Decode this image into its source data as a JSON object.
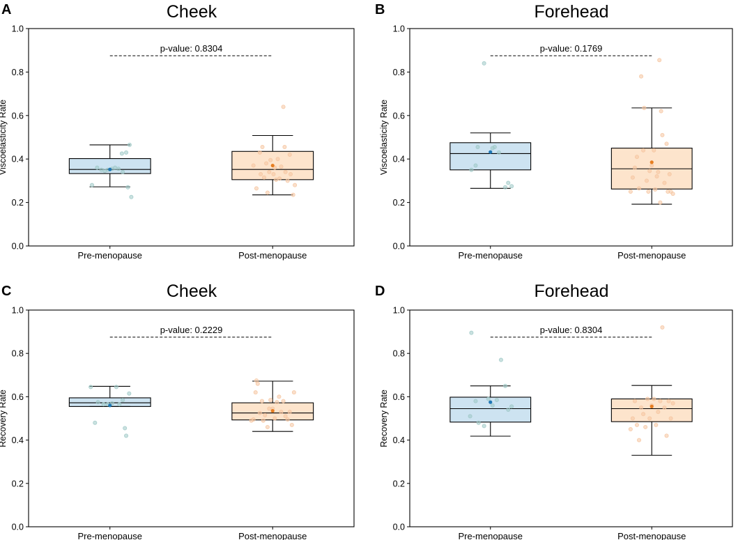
{
  "colors": {
    "pre_fill": "#cde3f1",
    "pre_mean": "#1f77b4",
    "pre_point": "#9fc9c6",
    "post_fill": "#fde4cc",
    "post_mean": "#e67e22",
    "post_point": "#f5c5a0",
    "axis": "#000000"
  },
  "chart_data": [
    {
      "type": "box",
      "panel": "A",
      "title": "Cheek",
      "ylabel": "Viscoelasticity Rate",
      "ylim": [
        0,
        1
      ],
      "yticks": [
        "0.0",
        "0.2",
        "0.4",
        "0.6",
        "0.8",
        "1.0"
      ],
      "p_value": "p-value: 0.8304",
      "groups": [
        {
          "name": "Pre-menopause",
          "whisker_low": 0.272,
          "q1": 0.333,
          "median": 0.352,
          "q3": 0.402,
          "whisker_high": 0.465,
          "mean": 0.352,
          "points": [
            [
              -0.42,
              0.28
            ],
            [
              -0.3,
              0.36
            ],
            [
              -0.2,
              0.35
            ],
            [
              -0.12,
              0.345
            ],
            [
              -0.05,
              0.35
            ],
            [
              0.05,
              0.355
            ],
            [
              0.12,
              0.36
            ],
            [
              0.2,
              0.355
            ],
            [
              0.28,
              0.425
            ],
            [
              0.3,
              0.34
            ],
            [
              0.38,
              0.43
            ],
            [
              0.42,
              0.27
            ],
            [
              0.46,
              0.465
            ],
            [
              0.5,
              0.225
            ]
          ]
        },
        {
          "name": "Post-menopause",
          "whisker_low": 0.235,
          "q1": 0.305,
          "median": 0.352,
          "q3": 0.435,
          "whisker_high": 0.508,
          "mean": 0.37,
          "points": [
            [
              -0.45,
              0.37
            ],
            [
              -0.38,
              0.265
            ],
            [
              -0.3,
              0.43
            ],
            [
              -0.28,
              0.33
            ],
            [
              -0.24,
              0.455
            ],
            [
              -0.2,
              0.315
            ],
            [
              -0.15,
              0.38
            ],
            [
              -0.12,
              0.245
            ],
            [
              -0.08,
              0.34
            ],
            [
              -0.05,
              0.395
            ],
            [
              0.02,
              0.33
            ],
            [
              0.05,
              0.36
            ],
            [
              0.08,
              0.305
            ],
            [
              0.12,
              0.4
            ],
            [
              0.16,
              0.31
            ],
            [
              0.2,
              0.365
            ],
            [
              0.25,
              0.64
            ],
            [
              0.28,
              0.455
            ],
            [
              0.3,
              0.34
            ],
            [
              0.35,
              0.3
            ],
            [
              0.4,
              0.42
            ],
            [
              0.42,
              0.33
            ],
            [
              0.48,
              0.235
            ],
            [
              0.52,
              0.28
            ]
          ]
        }
      ]
    },
    {
      "type": "box",
      "panel": "B",
      "title": "Forehead",
      "ylabel": "Viscoelasticity Rate",
      "ylim": [
        0,
        1
      ],
      "yticks": [
        "0.0",
        "0.2",
        "0.4",
        "0.6",
        "0.8",
        "1.0"
      ],
      "p_value": "p-value: 0.1769",
      "groups": [
        {
          "name": "Pre-menopause",
          "whisker_low": 0.265,
          "q1": 0.35,
          "median": 0.425,
          "q3": 0.475,
          "whisker_high": 0.52,
          "mean": 0.432,
          "points": [
            [
              -0.45,
              0.35
            ],
            [
              -0.35,
              0.37
            ],
            [
              -0.3,
              0.455
            ],
            [
              -0.15,
              0.84
            ],
            [
              0.05,
              0.45
            ],
            [
              0.1,
              0.455
            ],
            [
              0.2,
              0.43
            ],
            [
              0.35,
              0.27
            ],
            [
              0.42,
              0.29
            ],
            [
              0.5,
              0.275
            ]
          ]
        },
        {
          "name": "Post-menopause",
          "whisker_low": 0.192,
          "q1": 0.262,
          "median": 0.355,
          "q3": 0.45,
          "whisker_high": 0.635,
          "mean": 0.385,
          "points": [
            [
              -0.5,
              0.25
            ],
            [
              -0.45,
              0.315
            ],
            [
              -0.4,
              0.36
            ],
            [
              -0.35,
              0.41
            ],
            [
              -0.3,
              0.265
            ],
            [
              -0.25,
              0.78
            ],
            [
              -0.2,
              0.44
            ],
            [
              -0.18,
              0.635
            ],
            [
              -0.12,
              0.3
            ],
            [
              -0.08,
              0.25
            ],
            [
              -0.05,
              0.345
            ],
            [
              0.0,
              0.37
            ],
            [
              0.05,
              0.44
            ],
            [
              0.08,
              0.26
            ],
            [
              0.12,
              0.32
            ],
            [
              0.15,
              0.34
            ],
            [
              0.18,
              0.855
            ],
            [
              0.2,
              0.2
            ],
            [
              0.22,
              0.62
            ],
            [
              0.25,
              0.51
            ],
            [
              0.3,
              0.29
            ],
            [
              0.35,
              0.47
            ],
            [
              0.38,
              0.25
            ],
            [
              0.42,
              0.33
            ],
            [
              0.45,
              0.25
            ],
            [
              0.5,
              0.24
            ]
          ]
        }
      ]
    },
    {
      "type": "box",
      "panel": "C",
      "title": "Cheek",
      "ylabel": "Recovery Rate",
      "ylim": [
        0,
        1
      ],
      "yticks": [
        "0.0",
        "0.2",
        "0.4",
        "0.6",
        "0.8",
        "1.0"
      ],
      "p_value": "p-value: 0.2229",
      "groups": [
        {
          "name": "Pre-menopause",
          "whisker_low": 0.555,
          "q1": 0.555,
          "median": 0.572,
          "q3": 0.595,
          "whisker_high": 0.648,
          "mean": 0.56,
          "points": [
            [
              -0.45,
              0.645
            ],
            [
              -0.35,
              0.48
            ],
            [
              -0.28,
              0.575
            ],
            [
              -0.15,
              0.565
            ],
            [
              -0.05,
              0.565
            ],
            [
              0.05,
              0.57
            ],
            [
              0.15,
              0.645
            ],
            [
              0.22,
              0.565
            ],
            [
              0.3,
              0.585
            ],
            [
              0.35,
              0.455
            ],
            [
              0.38,
              0.42
            ],
            [
              0.45,
              0.615
            ]
          ]
        },
        {
          "name": "Post-menopause",
          "whisker_low": 0.44,
          "q1": 0.493,
          "median": 0.525,
          "q3": 0.572,
          "whisker_high": 0.672,
          "mean": 0.535,
          "points": [
            [
              -0.5,
              0.49
            ],
            [
              -0.45,
              0.495
            ],
            [
              -0.4,
              0.62
            ],
            [
              -0.38,
              0.675
            ],
            [
              -0.35,
              0.66
            ],
            [
              -0.3,
              0.525
            ],
            [
              -0.25,
              0.58
            ],
            [
              -0.22,
              0.49
            ],
            [
              -0.18,
              0.515
            ],
            [
              -0.12,
              0.46
            ],
            [
              -0.08,
              0.545
            ],
            [
              -0.05,
              0.585
            ],
            [
              0.0,
              0.545
            ],
            [
              0.05,
              0.5
            ],
            [
              0.1,
              0.575
            ],
            [
              0.15,
              0.6
            ],
            [
              0.2,
              0.53
            ],
            [
              0.25,
              0.58
            ],
            [
              0.3,
              0.51
            ],
            [
              0.35,
              0.495
            ],
            [
              0.4,
              0.53
            ],
            [
              0.45,
              0.47
            ],
            [
              0.5,
              0.62
            ]
          ]
        }
      ]
    },
    {
      "type": "box",
      "panel": "D",
      "title": "Forehead",
      "ylabel": "Recovery Rate",
      "ylim": [
        0,
        1
      ],
      "yticks": [
        "0.0",
        "0.2",
        "0.4",
        "0.6",
        "0.8",
        "1.0"
      ],
      "p_value": "p-value: 0.8304",
      "groups": [
        {
          "name": "Pre-menopause",
          "whisker_low": 0.418,
          "q1": 0.483,
          "median": 0.545,
          "q3": 0.598,
          "whisker_high": 0.65,
          "mean": 0.575,
          "points": [
            [
              -0.48,
              0.51
            ],
            [
              -0.45,
              0.895
            ],
            [
              -0.35,
              0.58
            ],
            [
              -0.28,
              0.48
            ],
            [
              -0.15,
              0.465
            ],
            [
              -0.05,
              0.59
            ],
            [
              0.05,
              0.56
            ],
            [
              0.15,
              0.585
            ],
            [
              0.25,
              0.77
            ],
            [
              0.35,
              0.65
            ],
            [
              0.42,
              0.54
            ],
            [
              0.5,
              0.555
            ]
          ]
        },
        {
          "name": "Post-menopause",
          "whisker_low": 0.33,
          "q1": 0.485,
          "median": 0.545,
          "q3": 0.59,
          "whisker_high": 0.652,
          "mean": 0.555,
          "points": [
            [
              -0.5,
              0.45
            ],
            [
              -0.45,
              0.5
            ],
            [
              -0.4,
              0.58
            ],
            [
              -0.35,
              0.47
            ],
            [
              -0.3,
              0.4
            ],
            [
              -0.25,
              0.55
            ],
            [
              -0.2,
              0.52
            ],
            [
              -0.15,
              0.46
            ],
            [
              -0.1,
              0.59
            ],
            [
              -0.05,
              0.5
            ],
            [
              0.0,
              0.56
            ],
            [
              0.05,
              0.59
            ],
            [
              0.1,
              0.47
            ],
            [
              0.15,
              0.53
            ],
            [
              0.2,
              0.58
            ],
            [
              0.25,
              0.92
            ],
            [
              0.3,
              0.55
            ],
            [
              0.35,
              0.42
            ],
            [
              0.4,
              0.58
            ],
            [
              0.45,
              0.5
            ],
            [
              0.5,
              0.57
            ]
          ]
        }
      ]
    }
  ]
}
